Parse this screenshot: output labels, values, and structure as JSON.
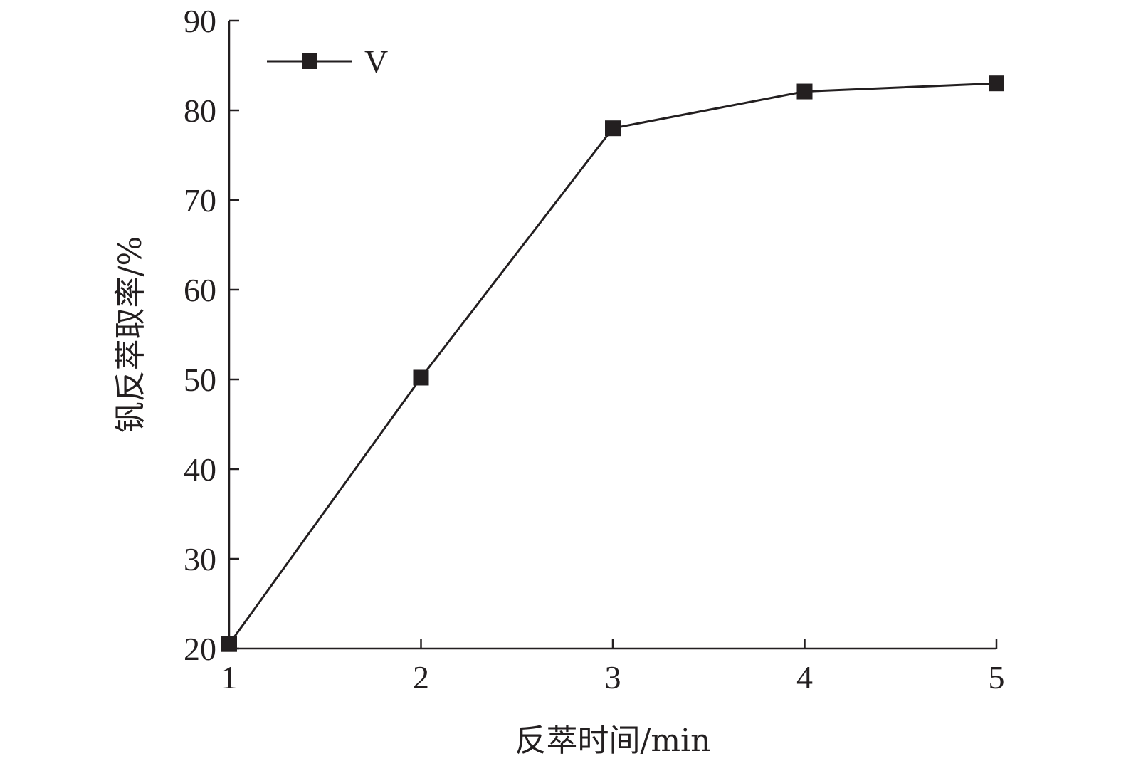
{
  "chart_data": {
    "type": "line",
    "title": "",
    "xlabel": "反萃时间/min",
    "ylabel": "钒反萃取率/%",
    "x": [
      1,
      2,
      3,
      4,
      5
    ],
    "xticks": [
      "1",
      "2",
      "3",
      "4",
      "5"
    ],
    "yticks": [
      "20",
      "30",
      "40",
      "50",
      "60",
      "70",
      "80",
      "90"
    ],
    "xlim": [
      1,
      5
    ],
    "ylim": [
      20,
      90
    ],
    "grid": false,
    "legend_position": "top-left",
    "series": [
      {
        "name": "V",
        "marker": "filled-square",
        "color": "#231f20",
        "values": [
          20.5,
          50.2,
          78.0,
          82.1,
          83.0
        ]
      }
    ]
  }
}
